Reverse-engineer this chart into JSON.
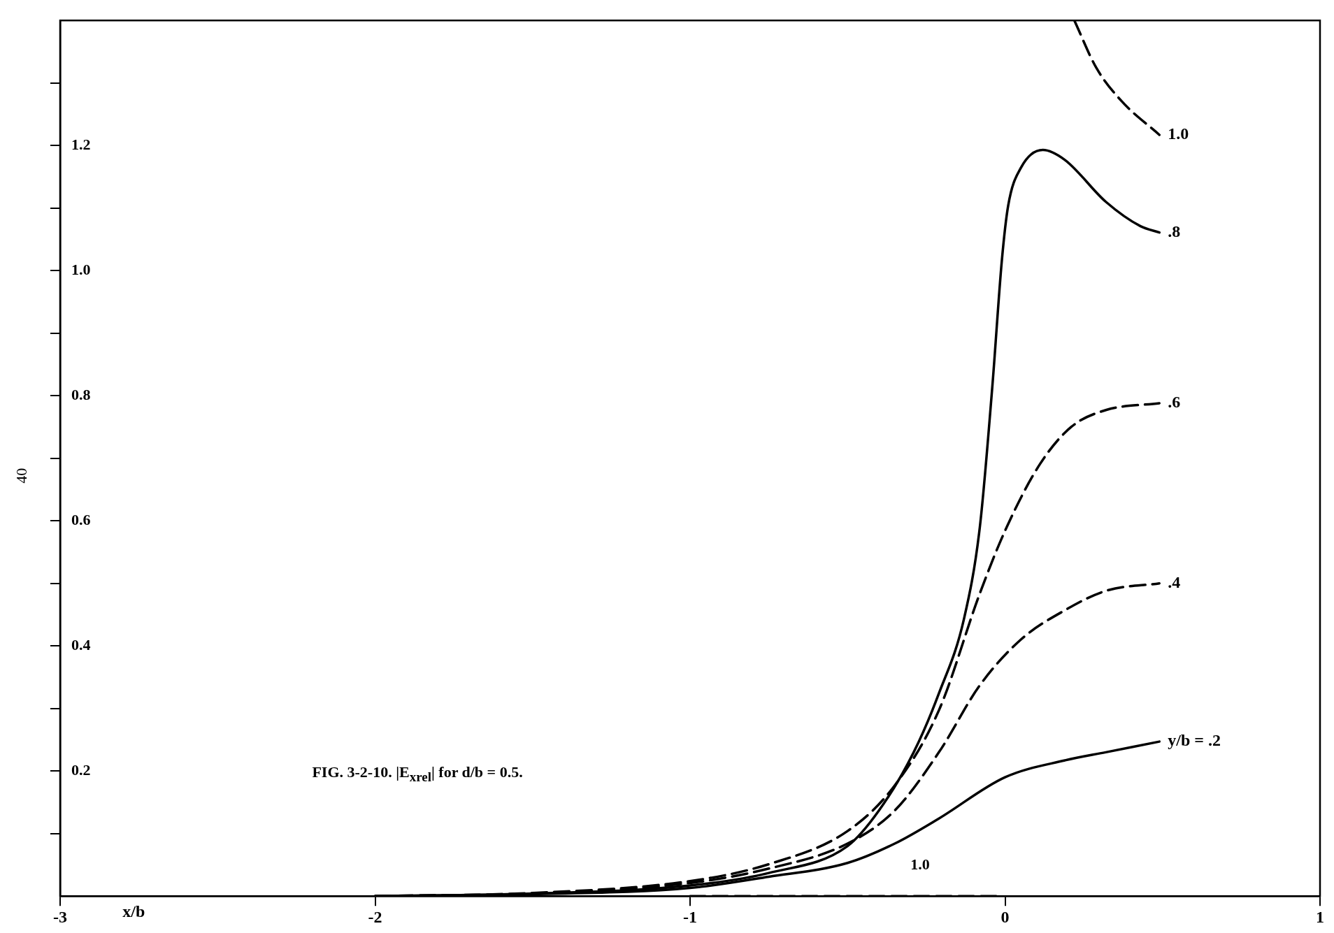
{
  "chart_data": {
    "type": "line",
    "xlabel": "x/b",
    "xlim": [
      -3,
      1
    ],
    "xticks": [
      -3,
      -2,
      -1,
      0,
      1
    ],
    "ylim": [
      0,
      1.4
    ],
    "yticks": [
      {
        "value": 0.1,
        "label": null
      },
      0.2,
      {
        "value": 0.3,
        "label": null
      },
      0.4,
      {
        "value": 0.5,
        "label": null
      },
      0.6,
      {
        "value": 0.7,
        "label": null
      },
      0.8,
      {
        "value": 0.9,
        "label": null
      },
      {
        "value": 1,
        "label": "1.0"
      },
      {
        "value": 1.1,
        "label": null
      },
      1.2,
      {
        "value": 1.3,
        "label": null
      }
    ],
    "grid": false,
    "legend": false,
    "marker": "none",
    "series": [
      {
        "name": "y/b = .2",
        "color": "#000000",
        "line_style": "solid",
        "x": [
          -2,
          -1.5,
          -1,
          -0.75,
          -0.5,
          -0.35,
          -0.21,
          0,
          0.19,
          0.32,
          0.49
        ],
        "values": [
          0,
          0.003,
          0.013,
          0.031,
          0.053,
          0.084,
          0.124,
          0.19,
          0.217,
          0.23,
          0.247
        ]
      },
      {
        "name": ".4",
        "color": "#000000",
        "line_style": "dashed",
        "x": [
          -2,
          -1.5,
          -1,
          -0.75,
          -0.5,
          -0.35,
          -0.21,
          -0.08,
          0.05,
          0.19,
          0.32,
          0.49
        ],
        "values": [
          0,
          0.004,
          0.021,
          0.044,
          0.084,
          0.137,
          0.23,
          0.337,
          0.41,
          0.457,
          0.488,
          0.5
        ]
      },
      {
        "name": ".6",
        "color": "#000000",
        "line_style": "dashed",
        "x": [
          -2,
          -1.5,
          -1,
          -0.75,
          -0.5,
          -0.35,
          -0.21,
          -0.08,
          0,
          0.11,
          0.21,
          0.32,
          0.49
        ],
        "values": [
          0,
          0.005,
          0.024,
          0.051,
          0.104,
          0.177,
          0.297,
          0.484,
          0.584,
          0.69,
          0.75,
          0.777,
          0.788
        ]
      },
      {
        "name": ".8",
        "color": "#000000",
        "line_style": "solid",
        "x": [
          -2,
          -1.5,
          -1,
          -0.75,
          -0.5,
          -0.4,
          -0.29,
          -0.21,
          -0.13,
          -0.08,
          -0.04,
          -0.01,
          0.01,
          0.05,
          0.12,
          0.19,
          0.32,
          0.43,
          0.49
        ],
        "values": [
          0,
          0.004,
          0.017,
          0.037,
          0.08,
          0.137,
          0.23,
          0.324,
          0.444,
          0.59,
          0.817,
          1.017,
          1.104,
          1.164,
          1.193,
          1.177,
          1.11,
          1.071,
          1.061
        ]
      },
      {
        "name": "1.0",
        "color": "#000000",
        "line_style": "dashed",
        "x": [
          -1,
          -0.5,
          -0.01,
          0.01,
          0.22,
          0.29,
          0.37,
          0.49
        ],
        "values": [
          0,
          0,
          0,
          null,
          1.4,
          1.324,
          1.271,
          1.217
        ]
      }
    ],
    "annotations": [
      "FIG. 3-2-10. |E$_{x}$$_{rel}$| for d/b = 0.5.",
      "40",
      "1.0"
    ]
  }
}
